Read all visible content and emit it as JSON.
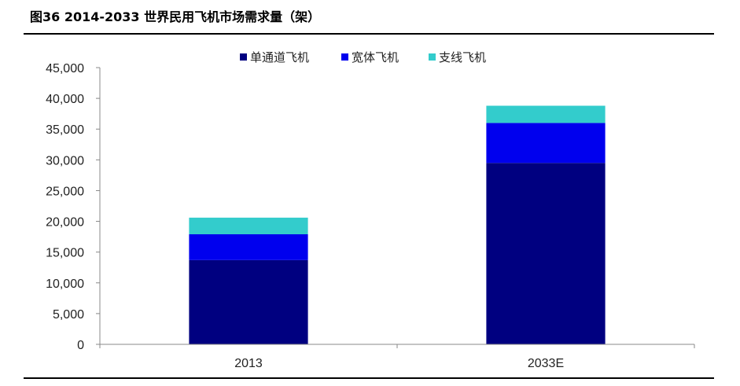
{
  "figure": {
    "title": "图36 2014-2033 世界民用飞机市场需求量（架）"
  },
  "chart_data": {
    "type": "bar",
    "stacked": true,
    "categories": [
      "2013",
      "2033E"
    ],
    "series": [
      {
        "name": "单通道飞机",
        "values": [
          13700,
          29500
        ],
        "color": "#000080"
      },
      {
        "name": "宽体飞机",
        "values": [
          4200,
          6500
        ],
        "color": "#0000ee"
      },
      {
        "name": "支线飞机",
        "values": [
          2700,
          2800
        ],
        "color": "#33cccc"
      }
    ],
    "ylim": [
      0,
      45000
    ],
    "yticks": [
      0,
      5000,
      10000,
      15000,
      20000,
      25000,
      30000,
      35000,
      40000,
      45000
    ],
    "ytick_labels": [
      "0",
      "5,000",
      "10,000",
      "15,000",
      "20,000",
      "25,000",
      "30,000",
      "35,000",
      "40,000",
      "45,000"
    ],
    "xlabel": "",
    "ylabel": "",
    "grid": false,
    "legend_position": "top-center"
  }
}
